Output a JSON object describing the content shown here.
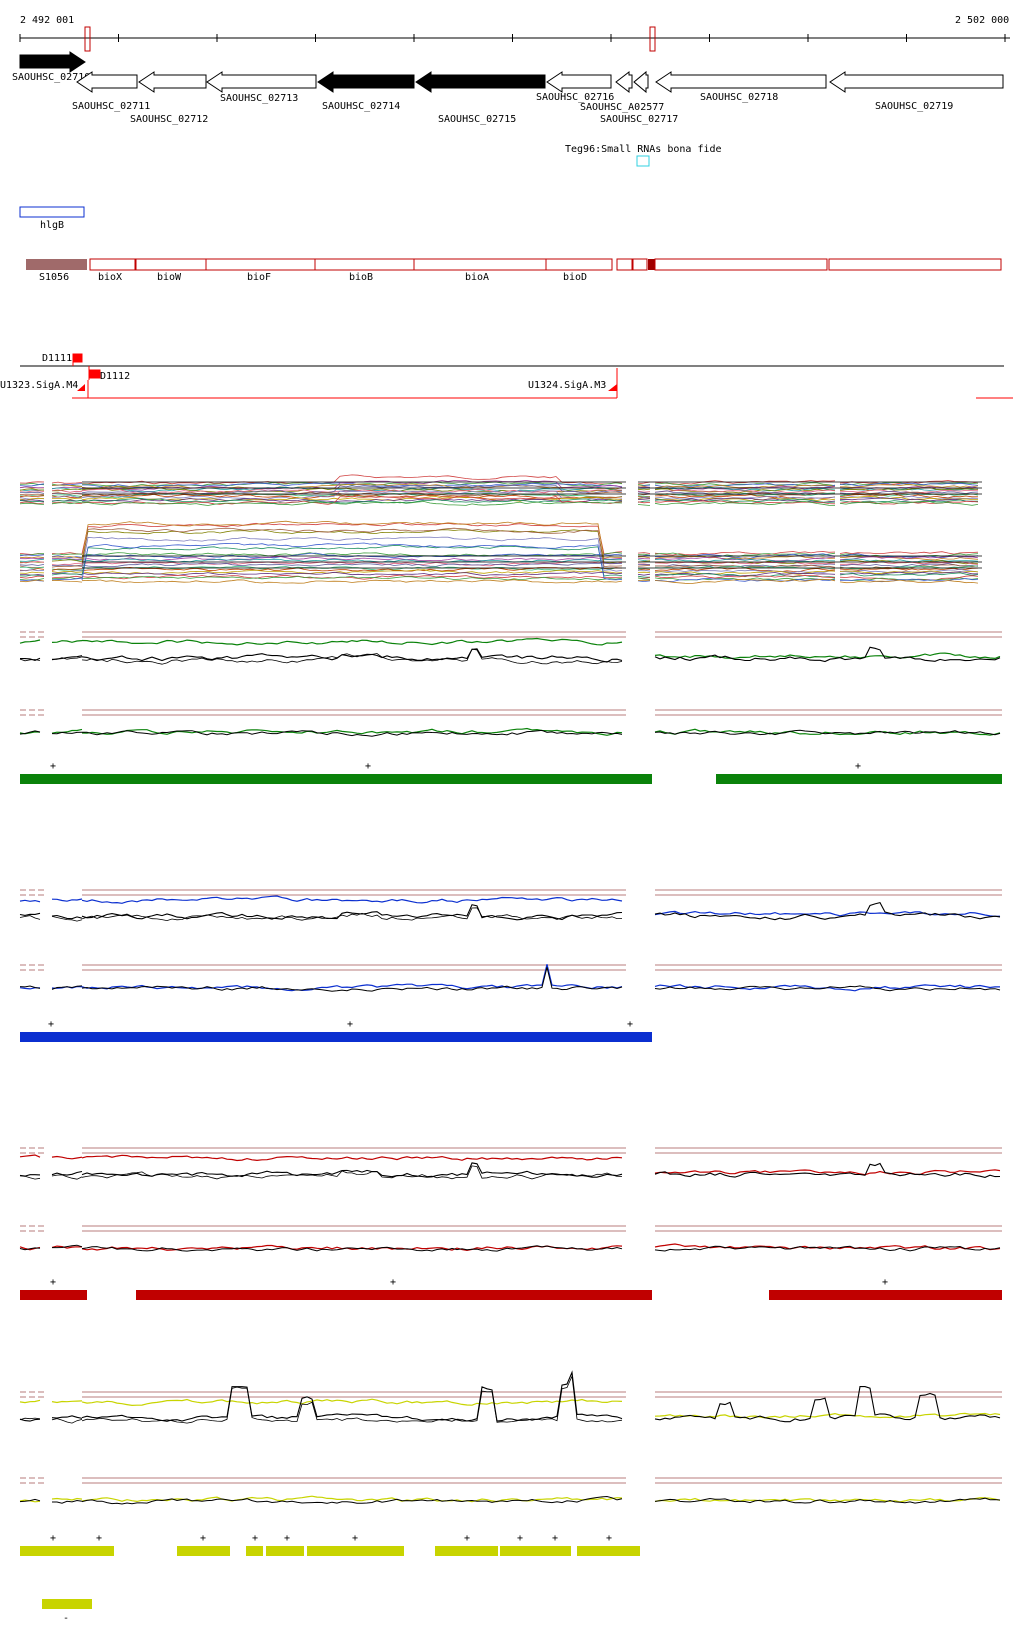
{
  "coordinates": {
    "start_label": "2 492 001",
    "end_label": "2 502 000"
  },
  "colors": {
    "black": "#000000",
    "red": "#c00000",
    "bright_red": "#ff0000",
    "blue": "#0b2fd0",
    "green": "#0a820a",
    "yellow": "#c8d400",
    "brown": "#a06a6a",
    "cyan": "#30d0e0",
    "threshold": "#a05050"
  },
  "genes": [
    {
      "label": "SAOUHSC_02710",
      "filled": true,
      "dir": "right"
    },
    {
      "label": "SAOUHSC_02711",
      "filled": false,
      "dir": "left"
    },
    {
      "label": "SAOUHSC_02712",
      "filled": false,
      "dir": "left"
    },
    {
      "label": "SAOUHSC_02713",
      "filled": false,
      "dir": "left"
    },
    {
      "label": "SAOUHSC_02714",
      "filled": true,
      "dir": "left"
    },
    {
      "label": "SAOUHSC_02715",
      "filled": true,
      "dir": "left"
    },
    {
      "label": "SAOUHSC_02716",
      "filled": false,
      "dir": "left"
    },
    {
      "label": "SAOUHSC_A02577",
      "filled": false,
      "dir": "left"
    },
    {
      "label": "SAOUHSC_02717",
      "filled": false,
      "dir": "left"
    },
    {
      "label": "SAOUHSC_02718",
      "filled": false,
      "dir": "left"
    },
    {
      "label": "SAOUHSC_02719",
      "filled": false,
      "dir": "left"
    }
  ],
  "small_rna": {
    "label": "Teg96:Small RNAs bona fide"
  },
  "hlgb": {
    "label": "hlgB"
  },
  "operon": {
    "s_label": "S1056",
    "genes": [
      "bioX",
      "bioW",
      "bioF",
      "bioB",
      "bioA",
      "bioD"
    ]
  },
  "tss": {
    "d1111": "D1111",
    "d1112": "D1112",
    "u1323": "U1323.SigA.M4",
    "u1324": "U1324.SigA.M3"
  },
  "conditions": [
    {
      "name": "green",
      "color": "#0a820a"
    },
    {
      "name": "blue",
      "color": "#0b2fd0"
    },
    {
      "name": "red",
      "color": "#c00000"
    },
    {
      "name": "yellow",
      "color": "#c8d400"
    }
  ],
  "segment_markers": {
    "plus": "+",
    "minus": "-"
  }
}
